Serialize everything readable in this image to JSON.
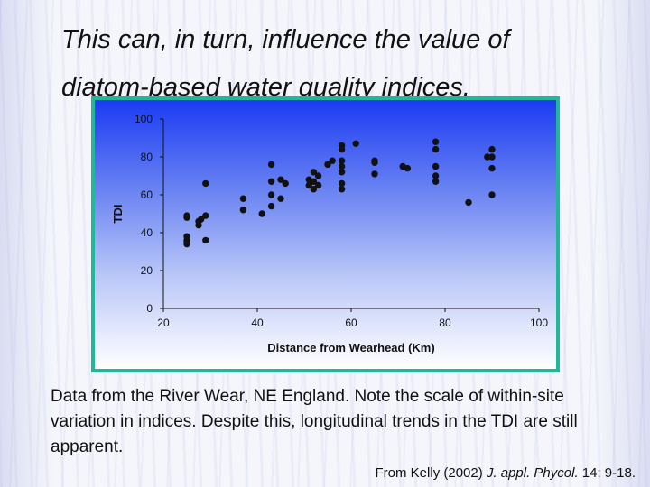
{
  "slide": {
    "title_line1": "This can, in turn, influence the value of",
    "title_line2": "diatom-based water quality indices.",
    "caption": "Data from the River Wear, NE England.   Note the scale of within-site variation in indices.  Despite this, longitudinal trends in the TDI are still apparent.",
    "citation_prefix": "From Kelly (2002)",
    "citation_journal": "J. appl. Phycol.",
    "citation_suffix": "14: 9-18."
  },
  "colors": {
    "frame_border": "#1fb89a",
    "gradient_top": "#1c3bf2",
    "gradient_bottom": "#ffffff",
    "point": "#111111"
  },
  "chart_data": {
    "type": "scatter",
    "title": "",
    "xlabel": "Distance from Wearhead (Km)",
    "ylabel": "TDI",
    "xlim": [
      20,
      100
    ],
    "ylim": [
      0,
      100
    ],
    "x_ticks": [
      20,
      40,
      60,
      80,
      100
    ],
    "y_ticks": [
      0,
      20,
      40,
      60,
      80,
      100
    ],
    "grid": false,
    "legend": "none",
    "points": [
      {
        "x": 25,
        "y": 48
      },
      {
        "x": 25,
        "y": 49
      },
      {
        "x": 25,
        "y": 38
      },
      {
        "x": 25,
        "y": 36
      },
      {
        "x": 25,
        "y": 35
      },
      {
        "x": 25,
        "y": 34
      },
      {
        "x": 27.5,
        "y": 44
      },
      {
        "x": 27.5,
        "y": 46
      },
      {
        "x": 28,
        "y": 47
      },
      {
        "x": 29,
        "y": 49
      },
      {
        "x": 29,
        "y": 66
      },
      {
        "x": 29,
        "y": 36
      },
      {
        "x": 37,
        "y": 58
      },
      {
        "x": 37,
        "y": 52
      },
      {
        "x": 41,
        "y": 50
      },
      {
        "x": 43,
        "y": 76
      },
      {
        "x": 43,
        "y": 67
      },
      {
        "x": 43,
        "y": 60
      },
      {
        "x": 43,
        "y": 54
      },
      {
        "x": 45,
        "y": 58
      },
      {
        "x": 45,
        "y": 68
      },
      {
        "x": 46,
        "y": 66
      },
      {
        "x": 51,
        "y": 68
      },
      {
        "x": 51,
        "y": 65
      },
      {
        "x": 52,
        "y": 63
      },
      {
        "x": 52,
        "y": 67
      },
      {
        "x": 52,
        "y": 72
      },
      {
        "x": 53,
        "y": 65
      },
      {
        "x": 53,
        "y": 70
      },
      {
        "x": 55,
        "y": 76
      },
      {
        "x": 56,
        "y": 78
      },
      {
        "x": 58,
        "y": 86
      },
      {
        "x": 58,
        "y": 84
      },
      {
        "x": 58,
        "y": 78
      },
      {
        "x": 58,
        "y": 75
      },
      {
        "x": 58,
        "y": 72
      },
      {
        "x": 58,
        "y": 66
      },
      {
        "x": 58,
        "y": 63
      },
      {
        "x": 61,
        "y": 87
      },
      {
        "x": 65,
        "y": 78
      },
      {
        "x": 65,
        "y": 77
      },
      {
        "x": 65,
        "y": 71
      },
      {
        "x": 71,
        "y": 75
      },
      {
        "x": 72,
        "y": 74
      },
      {
        "x": 78,
        "y": 88
      },
      {
        "x": 78,
        "y": 84
      },
      {
        "x": 78,
        "y": 75
      },
      {
        "x": 78,
        "y": 70
      },
      {
        "x": 78,
        "y": 67
      },
      {
        "x": 85,
        "y": 56
      },
      {
        "x": 89,
        "y": 80
      },
      {
        "x": 90,
        "y": 84
      },
      {
        "x": 90,
        "y": 80
      },
      {
        "x": 90,
        "y": 74
      },
      {
        "x": 90,
        "y": 60
      }
    ]
  }
}
